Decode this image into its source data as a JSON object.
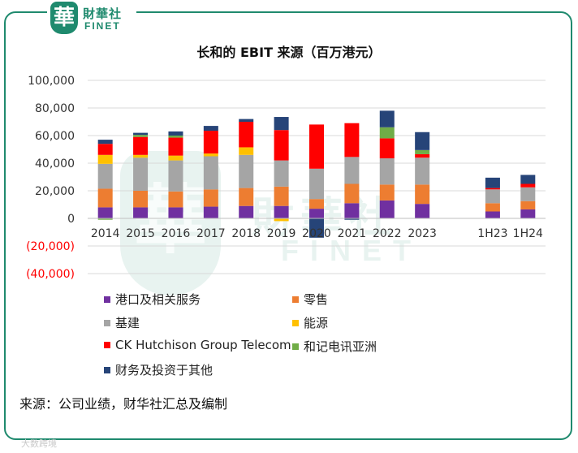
{
  "brand": {
    "emblem": "華",
    "name_cn": "財華社",
    "name_en": "FINET"
  },
  "watermark": {
    "name_cn": "財華社",
    "name_en": "FINET",
    "emblem": "華"
  },
  "corner_watermark": "大数跨境",
  "source_note": "来源：公司业绩，财华社汇总及编制",
  "colors": {
    "frame": "#1f8a6e",
    "series": [
      "#7030a0",
      "#ed7d31",
      "#a5a5a5",
      "#ffc000",
      "#ff0000",
      "#70ad47",
      "#264478"
    ]
  },
  "chart_data": {
    "type": "bar",
    "stacked": true,
    "title": "长和的 EBIT 来源（百万港元）",
    "xlabel": "",
    "ylabel": "",
    "ylim": [
      -40000,
      100000
    ],
    "yticks": [
      100000,
      80000,
      60000,
      40000,
      20000,
      0,
      -20000,
      -40000
    ],
    "ytick_labels": [
      "100,000",
      "80,000",
      "60,000",
      "40,000",
      "20,000",
      "0",
      "(20,000)",
      "(40,000)"
    ],
    "grid": true,
    "legend_position": "bottom",
    "categories": [
      "2014",
      "2015",
      "2016",
      "2017",
      "2018",
      "2019",
      "2020",
      "2021",
      "2022",
      "2023",
      "",
      "1H23",
      "1H24"
    ],
    "series": [
      {
        "name": "港口及相关服务",
        "values": [
          8000,
          8000,
          8000,
          8500,
          9000,
          9000,
          7000,
          11000,
          13000,
          10500,
          null,
          5000,
          6500
        ]
      },
      {
        "name": "零售",
        "values": [
          13500,
          12000,
          11500,
          12500,
          13000,
          14000,
          7000,
          14000,
          11500,
          14000,
          null,
          6000,
          6000
        ]
      },
      {
        "name": "基建",
        "values": [
          18000,
          24000,
          22500,
          24000,
          24000,
          19000,
          22000,
          19500,
          19000,
          19500,
          null,
          10000,
          10000
        ]
      },
      {
        "name": "能源",
        "values": [
          6500,
          2000,
          3500,
          2000,
          5500,
          -2000,
          0,
          0,
          0,
          0,
          null,
          0,
          0
        ]
      },
      {
        "name": "CK Hutchison Group Telecom",
        "values": [
          8000,
          13000,
          13000,
          16500,
          18500,
          22000,
          32000,
          24500,
          14500,
          2500,
          null,
          1000,
          2500
        ]
      },
      {
        "name": "和记电讯亚洲",
        "values": [
          -1000,
          1500,
          1500,
          0,
          0,
          0,
          0,
          0,
          8000,
          3000,
          null,
          0,
          0
        ]
      },
      {
        "name": "财务及投资于其他",
        "values": [
          3000,
          1500,
          3000,
          3500,
          2000,
          9500,
          -14000,
          -1000,
          12000,
          13000,
          null,
          7500,
          6500
        ]
      }
    ]
  }
}
